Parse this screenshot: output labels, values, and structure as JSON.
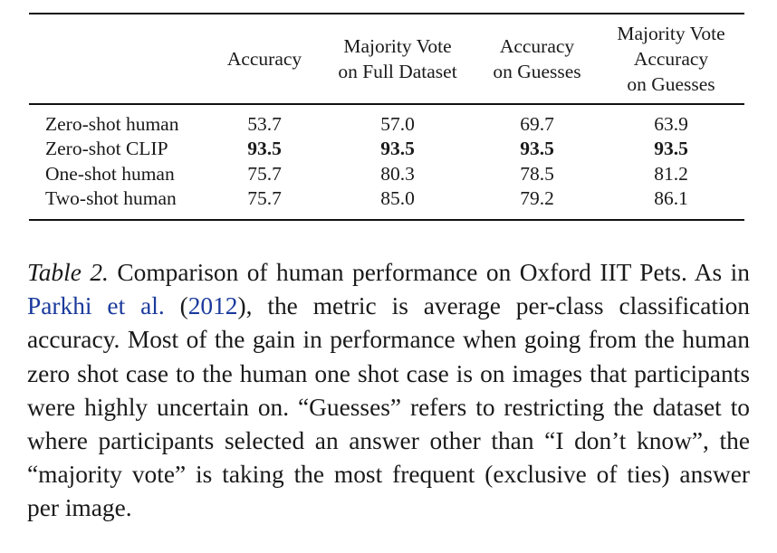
{
  "table": {
    "headers": [
      [
        "Accuracy"
      ],
      [
        "Majority Vote",
        "on Full Dataset"
      ],
      [
        "Accuracy",
        "on Guesses"
      ],
      [
        "Majority Vote",
        "Accuracy",
        "on Guesses"
      ]
    ],
    "rows": [
      {
        "label": "Zero-shot human",
        "values": [
          "53.7",
          "57.0",
          "69.7",
          "63.9"
        ],
        "bold": false
      },
      {
        "label": "Zero-shot CLIP",
        "values": [
          "93.5",
          "93.5",
          "93.5",
          "93.5"
        ],
        "bold": true
      },
      {
        "label": "One-shot human",
        "values": [
          "75.7",
          "80.3",
          "78.5",
          "81.2"
        ],
        "bold": false
      },
      {
        "label": "Two-shot human",
        "values": [
          "75.7",
          "85.0",
          "79.2",
          "86.1"
        ],
        "bold": false
      }
    ]
  },
  "caption": {
    "label": "Table 2.",
    "text_1": " Comparison of human performance on Oxford IIT Pets. As in ",
    "citation_authors": "Parkhi et al.",
    "citation_open": " (",
    "citation_year": "2012",
    "citation_close": ")",
    "text_2": ", the metric is average per-class classification accuracy. Most of the gain in performance when going from the human zero shot case to the human one shot case is on images that participants were highly uncertain on. “Guesses” refers to restricting the dataset to where participants selected an answer other than “I don’t know”, the “majority vote” is taking the most frequent (exclusive of ties) answer per image."
  },
  "colors": {
    "text": "#1a1a1a",
    "link": "#1a3a9c",
    "rule": "#111111"
  }
}
